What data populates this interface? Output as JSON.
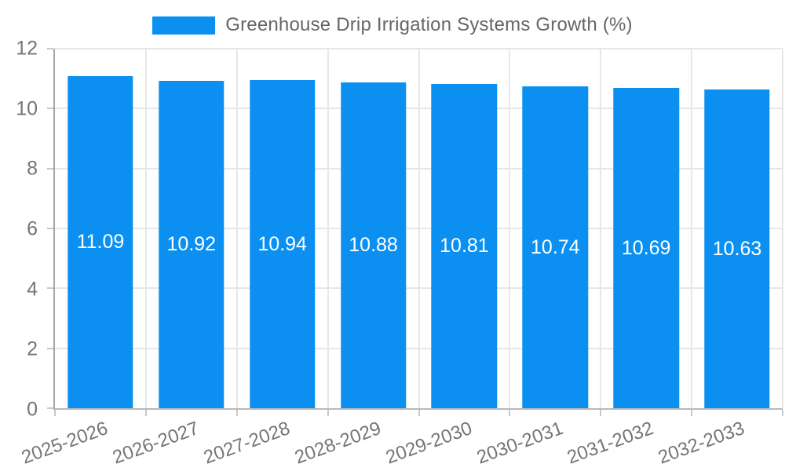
{
  "chart_data": {
    "type": "bar",
    "title": "Greenhouse Drip Irrigation Systems Growth (%)",
    "categories": [
      "2025-2026",
      "2026-2027",
      "2027-2028",
      "2028-2029",
      "2029-2030",
      "2030-2031",
      "2031-2032",
      "2032-2033"
    ],
    "values": [
      11.09,
      10.92,
      10.94,
      10.88,
      10.81,
      10.74,
      10.69,
      10.63
    ],
    "value_labels": [
      "11.09",
      "10.92",
      "10.94",
      "10.88",
      "10.81",
      "10.74",
      "10.69",
      "10.63"
    ],
    "xlabel": "",
    "ylabel": "",
    "ylim": [
      0,
      12
    ],
    "yticks": [
      0,
      2,
      4,
      6,
      8,
      10,
      12
    ],
    "grid": true,
    "legend_position": "top",
    "colors": {
      "bar": "#0b90f1",
      "bar_value_text": "#ffffff",
      "tick_text": "#757575",
      "legend_text": "#666666",
      "gridline": "#e7e7e7",
      "axis_line": "#a6a6a6"
    }
  }
}
